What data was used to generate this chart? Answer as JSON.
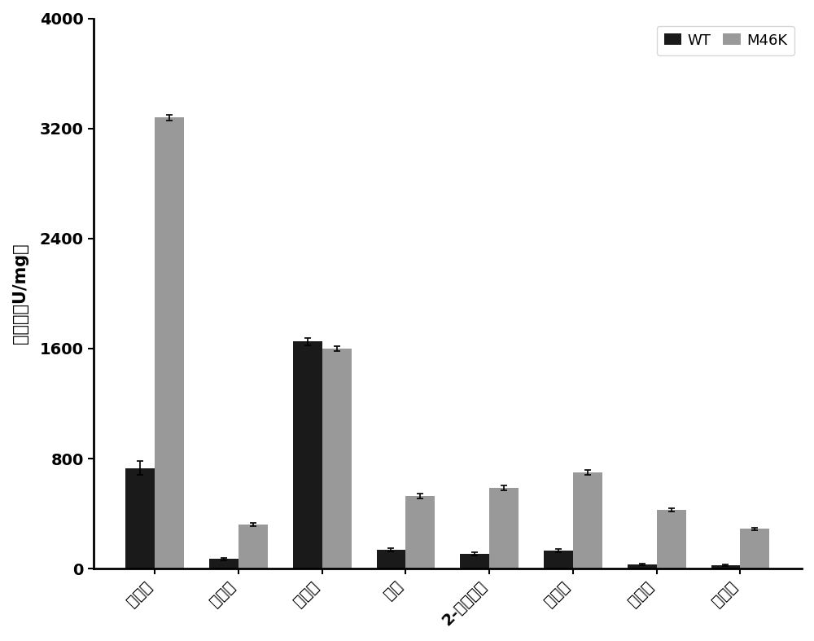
{
  "categories": [
    "异丁脹",
    "正戊脹",
    "丙烯脹",
    "烟脹",
    "2-氰基吵弗",
    "苯甲脹",
    "肉桂脹",
    "萊甲脹"
  ],
  "wt_values": [
    730,
    70,
    1650,
    140,
    110,
    130,
    30,
    25
  ],
  "m46k_values": [
    3280,
    320,
    1600,
    530,
    590,
    700,
    430,
    290
  ],
  "wt_errors": [
    50,
    8,
    25,
    12,
    12,
    12,
    4,
    4
  ],
  "m46k_errors": [
    20,
    12,
    18,
    18,
    18,
    20,
    12,
    8
  ],
  "wt_color": "#1a1a1a",
  "m46k_color": "#999999",
  "ylabel": "比酶活（U/mg）",
  "yticks": [
    0,
    800,
    1600,
    2400,
    3200,
    4000
  ],
  "ylim": [
    0,
    4000
  ],
  "bar_width": 0.35,
  "legend_labels": [
    "WT",
    "M46K"
  ],
  "figsize": [
    10.0,
    7.87
  ],
  "dpi": 100
}
